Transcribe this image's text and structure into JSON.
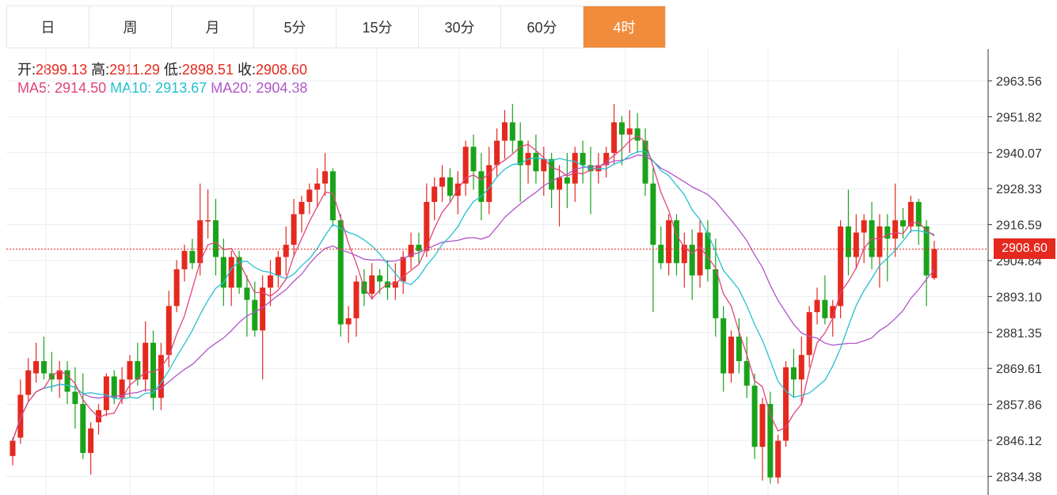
{
  "tabs": [
    {
      "label": "日",
      "active": false
    },
    {
      "label": "周",
      "active": false
    },
    {
      "label": "月",
      "active": false
    },
    {
      "label": "5分",
      "active": false
    },
    {
      "label": "15分",
      "active": false
    },
    {
      "label": "30分",
      "active": false
    },
    {
      "label": "60分",
      "active": false
    },
    {
      "label": "4时",
      "active": true
    }
  ],
  "ohlc": {
    "open_label": "开:",
    "open": "2899.13",
    "high_label": "高:",
    "high": "2911.29",
    "low_label": "低:",
    "low": "2898.51",
    "close_label": "收:",
    "close": "2908.60"
  },
  "ma": {
    "ma5_label": "MA5:",
    "ma5": "2914.50",
    "ma10_label": "MA10:",
    "ma10": "2913.67",
    "ma20_label": "MA20:",
    "ma20": "2904.38"
  },
  "last_price": "2908.60",
  "colors": {
    "up": "#e5291f",
    "down": "#1aa31a",
    "accent": "#f08c3c",
    "ma5": "#e0457b",
    "ma10": "#26c0d0",
    "ma20": "#b055c8",
    "grid": "#e8eef4"
  },
  "chart_data": {
    "type": "candlestick",
    "y_ticks": [
      "2963.56",
      "2951.82",
      "2940.07",
      "2928.33",
      "2916.59",
      "2904.84",
      "2893.10",
      "2881.35",
      "2869.61",
      "2857.86",
      "2846.12",
      "2834.38"
    ],
    "ylim": [
      2831,
      2967
    ],
    "grid": true,
    "candles": [
      {
        "o": 2841,
        "h": 2847,
        "l": 2838,
        "c": 2846
      },
      {
        "o": 2847,
        "h": 2866,
        "l": 2845,
        "c": 2861
      },
      {
        "o": 2861,
        "h": 2873,
        "l": 2859,
        "c": 2869
      },
      {
        "o": 2868,
        "h": 2878,
        "l": 2865,
        "c": 2872
      },
      {
        "o": 2872,
        "h": 2880,
        "l": 2866,
        "c": 2868
      },
      {
        "o": 2868,
        "h": 2875,
        "l": 2862,
        "c": 2866
      },
      {
        "o": 2866,
        "h": 2872,
        "l": 2860,
        "c": 2869
      },
      {
        "o": 2869,
        "h": 2872,
        "l": 2858,
        "c": 2862
      },
      {
        "o": 2862,
        "h": 2870,
        "l": 2850,
        "c": 2858
      },
      {
        "o": 2858,
        "h": 2868,
        "l": 2840,
        "c": 2842
      },
      {
        "o": 2842,
        "h": 2852,
        "l": 2835,
        "c": 2850
      },
      {
        "o": 2852,
        "h": 2858,
        "l": 2848,
        "c": 2856
      },
      {
        "o": 2856,
        "h": 2868,
        "l": 2854,
        "c": 2867
      },
      {
        "o": 2867,
        "h": 2869,
        "l": 2858,
        "c": 2860
      },
      {
        "o": 2860,
        "h": 2870,
        "l": 2858,
        "c": 2866
      },
      {
        "o": 2866,
        "h": 2874,
        "l": 2860,
        "c": 2872
      },
      {
        "o": 2872,
        "h": 2878,
        "l": 2864,
        "c": 2866
      },
      {
        "o": 2866,
        "h": 2885,
        "l": 2862,
        "c": 2878
      },
      {
        "o": 2878,
        "h": 2882,
        "l": 2856,
        "c": 2860
      },
      {
        "o": 2860,
        "h": 2878,
        "l": 2856,
        "c": 2874
      },
      {
        "o": 2874,
        "h": 2895,
        "l": 2870,
        "c": 2890
      },
      {
        "o": 2890,
        "h": 2905,
        "l": 2888,
        "c": 2902
      },
      {
        "o": 2902,
        "h": 2910,
        "l": 2898,
        "c": 2908
      },
      {
        "o": 2908,
        "h": 2912,
        "l": 2902,
        "c": 2904
      },
      {
        "o": 2904,
        "h": 2930,
        "l": 2900,
        "c": 2918
      },
      {
        "o": 2918,
        "h": 2928,
        "l": 2912,
        "c": 2918
      },
      {
        "o": 2918,
        "h": 2925,
        "l": 2900,
        "c": 2906
      },
      {
        "o": 2906,
        "h": 2912,
        "l": 2890,
        "c": 2896
      },
      {
        "o": 2896,
        "h": 2908,
        "l": 2890,
        "c": 2906
      },
      {
        "o": 2906,
        "h": 2908,
        "l": 2894,
        "c": 2896
      },
      {
        "o": 2896,
        "h": 2900,
        "l": 2880,
        "c": 2892
      },
      {
        "o": 2892,
        "h": 2898,
        "l": 2880,
        "c": 2882
      },
      {
        "o": 2882,
        "h": 2900,
        "l": 2866,
        "c": 2896
      },
      {
        "o": 2896,
        "h": 2905,
        "l": 2890,
        "c": 2900
      },
      {
        "o": 2900,
        "h": 2908,
        "l": 2896,
        "c": 2906
      },
      {
        "o": 2906,
        "h": 2916,
        "l": 2900,
        "c": 2910
      },
      {
        "o": 2910,
        "h": 2925,
        "l": 2906,
        "c": 2920
      },
      {
        "o": 2920,
        "h": 2926,
        "l": 2914,
        "c": 2924
      },
      {
        "o": 2924,
        "h": 2930,
        "l": 2920,
        "c": 2928
      },
      {
        "o": 2928,
        "h": 2935,
        "l": 2922,
        "c": 2930
      },
      {
        "o": 2930,
        "h": 2940,
        "l": 2926,
        "c": 2934
      },
      {
        "o": 2934,
        "h": 2935,
        "l": 2916,
        "c": 2918
      },
      {
        "o": 2918,
        "h": 2920,
        "l": 2880,
        "c": 2884
      },
      {
        "o": 2884,
        "h": 2890,
        "l": 2878,
        "c": 2886
      },
      {
        "o": 2886,
        "h": 2900,
        "l": 2880,
        "c": 2898
      },
      {
        "o": 2898,
        "h": 2902,
        "l": 2890,
        "c": 2894
      },
      {
        "o": 2894,
        "h": 2904,
        "l": 2892,
        "c": 2900
      },
      {
        "o": 2900,
        "h": 2902,
        "l": 2894,
        "c": 2898
      },
      {
        "o": 2898,
        "h": 2905,
        "l": 2892,
        "c": 2896
      },
      {
        "o": 2896,
        "h": 2904,
        "l": 2892,
        "c": 2898
      },
      {
        "o": 2898,
        "h": 2908,
        "l": 2894,
        "c": 2906
      },
      {
        "o": 2906,
        "h": 2914,
        "l": 2902,
        "c": 2910
      },
      {
        "o": 2910,
        "h": 2914,
        "l": 2904,
        "c": 2908
      },
      {
        "o": 2908,
        "h": 2930,
        "l": 2906,
        "c": 2924
      },
      {
        "o": 2924,
        "h": 2932,
        "l": 2918,
        "c": 2929
      },
      {
        "o": 2929,
        "h": 2936,
        "l": 2924,
        "c": 2932
      },
      {
        "o": 2932,
        "h": 2935,
        "l": 2924,
        "c": 2926
      },
      {
        "o": 2926,
        "h": 2934,
        "l": 2920,
        "c": 2930
      },
      {
        "o": 2930,
        "h": 2944,
        "l": 2926,
        "c": 2942
      },
      {
        "o": 2942,
        "h": 2946,
        "l": 2928,
        "c": 2934
      },
      {
        "o": 2934,
        "h": 2940,
        "l": 2918,
        "c": 2924
      },
      {
        "o": 2924,
        "h": 2942,
        "l": 2920,
        "c": 2936
      },
      {
        "o": 2936,
        "h": 2948,
        "l": 2932,
        "c": 2944
      },
      {
        "o": 2944,
        "h": 2954,
        "l": 2938,
        "c": 2950
      },
      {
        "o": 2950,
        "h": 2956,
        "l": 2940,
        "c": 2944
      },
      {
        "o": 2944,
        "h": 2950,
        "l": 2924,
        "c": 2936
      },
      {
        "o": 2936,
        "h": 2944,
        "l": 2930,
        "c": 2940
      },
      {
        "o": 2940,
        "h": 2946,
        "l": 2930,
        "c": 2934
      },
      {
        "o": 2934,
        "h": 2942,
        "l": 2926,
        "c": 2938
      },
      {
        "o": 2938,
        "h": 2940,
        "l": 2922,
        "c": 2928
      },
      {
        "o": 2928,
        "h": 2936,
        "l": 2916,
        "c": 2932
      },
      {
        "o": 2932,
        "h": 2940,
        "l": 2922,
        "c": 2930
      },
      {
        "o": 2930,
        "h": 2942,
        "l": 2924,
        "c": 2940
      },
      {
        "o": 2940,
        "h": 2944,
        "l": 2930,
        "c": 2936
      },
      {
        "o": 2936,
        "h": 2942,
        "l": 2920,
        "c": 2934
      },
      {
        "o": 2934,
        "h": 2940,
        "l": 2930,
        "c": 2936
      },
      {
        "o": 2936,
        "h": 2942,
        "l": 2932,
        "c": 2940
      },
      {
        "o": 2940,
        "h": 2956,
        "l": 2936,
        "c": 2950
      },
      {
        "o": 2950,
        "h": 2952,
        "l": 2936,
        "c": 2946
      },
      {
        "o": 2946,
        "h": 2954,
        "l": 2940,
        "c": 2948
      },
      {
        "o": 2948,
        "h": 2953,
        "l": 2940,
        "c": 2944
      },
      {
        "o": 2944,
        "h": 2948,
        "l": 2926,
        "c": 2930
      },
      {
        "o": 2930,
        "h": 2935,
        "l": 2888,
        "c": 2910
      },
      {
        "o": 2910,
        "h": 2916,
        "l": 2902,
        "c": 2904
      },
      {
        "o": 2904,
        "h": 2920,
        "l": 2900,
        "c": 2918
      },
      {
        "o": 2918,
        "h": 2920,
        "l": 2900,
        "c": 2904
      },
      {
        "o": 2904,
        "h": 2914,
        "l": 2896,
        "c": 2910
      },
      {
        "o": 2910,
        "h": 2915,
        "l": 2892,
        "c": 2900
      },
      {
        "o": 2900,
        "h": 2918,
        "l": 2896,
        "c": 2914
      },
      {
        "o": 2914,
        "h": 2918,
        "l": 2898,
        "c": 2902
      },
      {
        "o": 2902,
        "h": 2912,
        "l": 2880,
        "c": 2886
      },
      {
        "o": 2886,
        "h": 2890,
        "l": 2862,
        "c": 2868
      },
      {
        "o": 2868,
        "h": 2882,
        "l": 2865,
        "c": 2880
      },
      {
        "o": 2880,
        "h": 2886,
        "l": 2868,
        "c": 2872
      },
      {
        "o": 2872,
        "h": 2880,
        "l": 2860,
        "c": 2864
      },
      {
        "o": 2864,
        "h": 2868,
        "l": 2840,
        "c": 2844
      },
      {
        "o": 2844,
        "h": 2860,
        "l": 2833,
        "c": 2858
      },
      {
        "o": 2858,
        "h": 2862,
        "l": 2832,
        "c": 2834
      },
      {
        "o": 2834,
        "h": 2848,
        "l": 2832,
        "c": 2846
      },
      {
        "o": 2846,
        "h": 2872,
        "l": 2844,
        "c": 2870
      },
      {
        "o": 2870,
        "h": 2876,
        "l": 2860,
        "c": 2866
      },
      {
        "o": 2866,
        "h": 2880,
        "l": 2858,
        "c": 2874
      },
      {
        "o": 2874,
        "h": 2890,
        "l": 2870,
        "c": 2888
      },
      {
        "o": 2888,
        "h": 2896,
        "l": 2884,
        "c": 2892
      },
      {
        "o": 2892,
        "h": 2900,
        "l": 2884,
        "c": 2886
      },
      {
        "o": 2886,
        "h": 2892,
        "l": 2880,
        "c": 2890
      },
      {
        "o": 2890,
        "h": 2918,
        "l": 2886,
        "c": 2916
      },
      {
        "o": 2916,
        "h": 2928,
        "l": 2900,
        "c": 2906
      },
      {
        "o": 2906,
        "h": 2920,
        "l": 2902,
        "c": 2914
      },
      {
        "o": 2914,
        "h": 2920,
        "l": 2904,
        "c": 2918
      },
      {
        "o": 2918,
        "h": 2924,
        "l": 2902,
        "c": 2906
      },
      {
        "o": 2906,
        "h": 2920,
        "l": 2896,
        "c": 2916
      },
      {
        "o": 2916,
        "h": 2920,
        "l": 2898,
        "c": 2912
      },
      {
        "o": 2912,
        "h": 2930,
        "l": 2906,
        "c": 2918
      },
      {
        "o": 2918,
        "h": 2922,
        "l": 2912,
        "c": 2916
      },
      {
        "o": 2916,
        "h": 2926,
        "l": 2914,
        "c": 2924
      },
      {
        "o": 2924,
        "h": 2925,
        "l": 2910,
        "c": 2916
      },
      {
        "o": 2916,
        "h": 2918,
        "l": 2890,
        "c": 2900
      },
      {
        "o": 2899.13,
        "h": 2911.29,
        "l": 2898.51,
        "c": 2908.6
      }
    ]
  }
}
